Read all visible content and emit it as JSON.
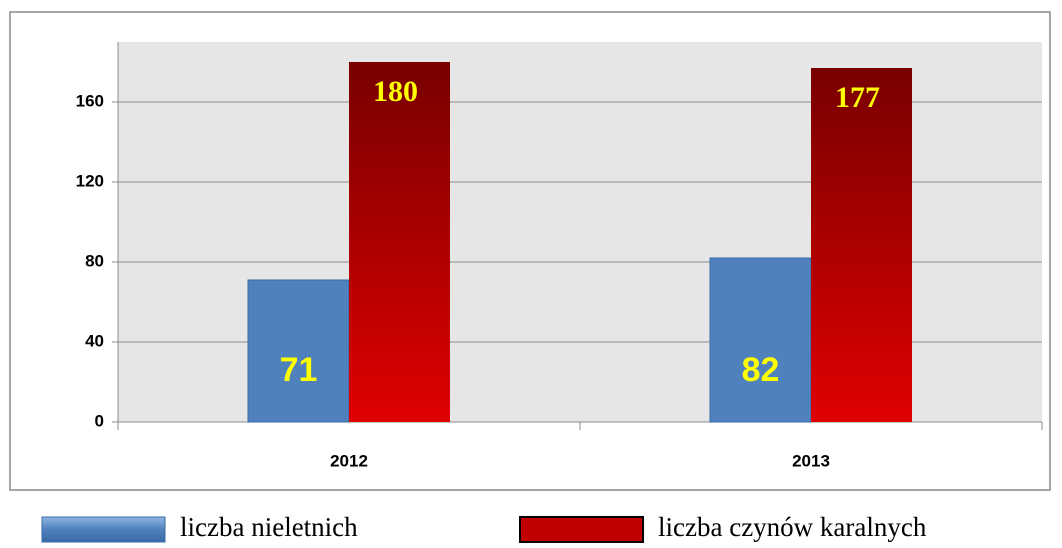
{
  "chart_data": {
    "type": "bar",
    "categories": [
      "2012",
      "2013"
    ],
    "series": [
      {
        "name": "liczba nieletnich",
        "color": "#4f81bd",
        "values": [
          71,
          82
        ]
      },
      {
        "name": "liczba czynów karalnych",
        "color": "#c00000",
        "values": [
          180,
          177
        ]
      }
    ],
    "ylim": [
      0,
      190
    ],
    "yticks": [
      0,
      40,
      80,
      120,
      160
    ],
    "grid": true,
    "legend": "bottom"
  }
}
